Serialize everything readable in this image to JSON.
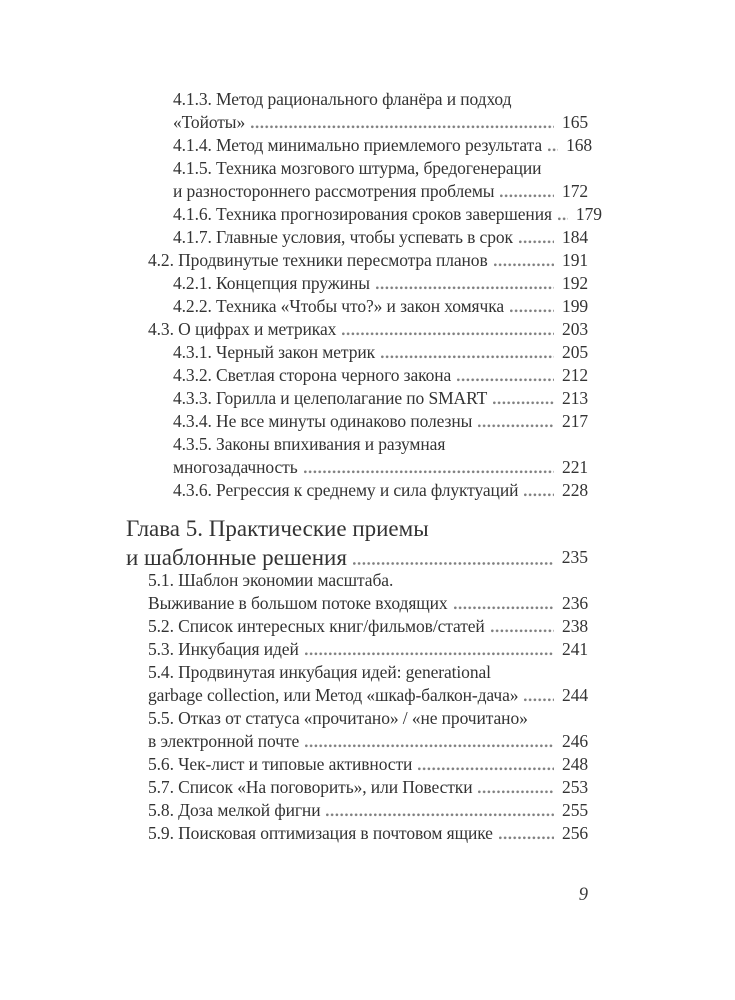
{
  "colors": {
    "background": "#ffffff",
    "text": "#333333",
    "leader_dots": "#7f7f7f"
  },
  "page": {
    "folio": "9",
    "toc_entries": [
      {
        "level": 2,
        "lines": [
          "4.1.3. Метод рационального фланёра и подход",
          "«Тойоты»"
        ],
        "page": "165"
      },
      {
        "level": 2,
        "lines": [
          "4.1.4. Метод минимально приемлемого результата"
        ],
        "page": "168"
      },
      {
        "level": 2,
        "lines": [
          "4.1.5. Техника мозгового штурма, бредогенерации",
          "и разностороннего рассмотрения проблемы"
        ],
        "page": "172"
      },
      {
        "level": 2,
        "lines": [
          "4.1.6. Техника прогнозирования сроков завершения"
        ],
        "page": "179"
      },
      {
        "level": 2,
        "lines": [
          "4.1.7. Главные условия, чтобы успевать в срок"
        ],
        "page": "184"
      },
      {
        "level": 1,
        "lines": [
          "4.2. Продвинутые техники пересмотра планов"
        ],
        "page": "191"
      },
      {
        "level": 2,
        "lines": [
          "4.2.1. Концепция пружины"
        ],
        "page": "192"
      },
      {
        "level": 2,
        "lines": [
          "4.2.2. Техника «Чтобы что?» и закон хомячка"
        ],
        "page": "199"
      },
      {
        "level": 1,
        "lines": [
          "4.3. О цифрах и метриках"
        ],
        "page": "203"
      },
      {
        "level": 2,
        "lines": [
          "4.3.1. Черный закон метрик"
        ],
        "page": "205"
      },
      {
        "level": 2,
        "lines": [
          "4.3.2. Светлая сторона черного закона"
        ],
        "page": "212"
      },
      {
        "level": 2,
        "lines": [
          "4.3.3. Горилла и целеполагание по SMART"
        ],
        "page": "213"
      },
      {
        "level": 2,
        "lines": [
          "4.3.4. Не все минуты одинаково полезны"
        ],
        "page": "217"
      },
      {
        "level": 2,
        "lines": [
          "4.3.5. Законы впихивания и разумная",
          "многозадачность"
        ],
        "page": "221"
      },
      {
        "level": 2,
        "lines": [
          "4.3.6. Регрессия к среднему и сила флуктуаций"
        ],
        "page": "228"
      },
      {
        "level": 0,
        "heading": true,
        "lines": [
          "Глава 5. Практические приемы",
          "и шаблонные решения"
        ],
        "page": "235"
      },
      {
        "level": 1,
        "lines": [
          "5.1. Шаблон экономии масштаба.",
          "Выживание в большом потоке входящих"
        ],
        "page": "236"
      },
      {
        "level": 1,
        "lines": [
          "5.2. Список интересных книг/фильмов/статей"
        ],
        "page": "238"
      },
      {
        "level": 1,
        "lines": [
          "5.3. Инкубация идей"
        ],
        "page": "241"
      },
      {
        "level": 1,
        "lines": [
          "5.4. Продвинутая инкубация идей: generational",
          "garbage collection, или Метод «шкаф-балкон-дача»"
        ],
        "page": "244"
      },
      {
        "level": 1,
        "lines": [
          "5.5. Отказ от статуса «прочитано» / «не прочитано»",
          "в электронной почте"
        ],
        "page": "246"
      },
      {
        "level": 1,
        "lines": [
          "5.6. Чек-лист и типовые активности"
        ],
        "page": "248"
      },
      {
        "level": 1,
        "lines": [
          "5.7. Список «На поговорить», или Повестки"
        ],
        "page": "253"
      },
      {
        "level": 1,
        "lines": [
          "5.8. Доза мелкой фигни"
        ],
        "page": "255"
      },
      {
        "level": 1,
        "lines": [
          "5.9. Поисковая оптимизация в почтовом ящике"
        ],
        "page": "256"
      }
    ]
  }
}
